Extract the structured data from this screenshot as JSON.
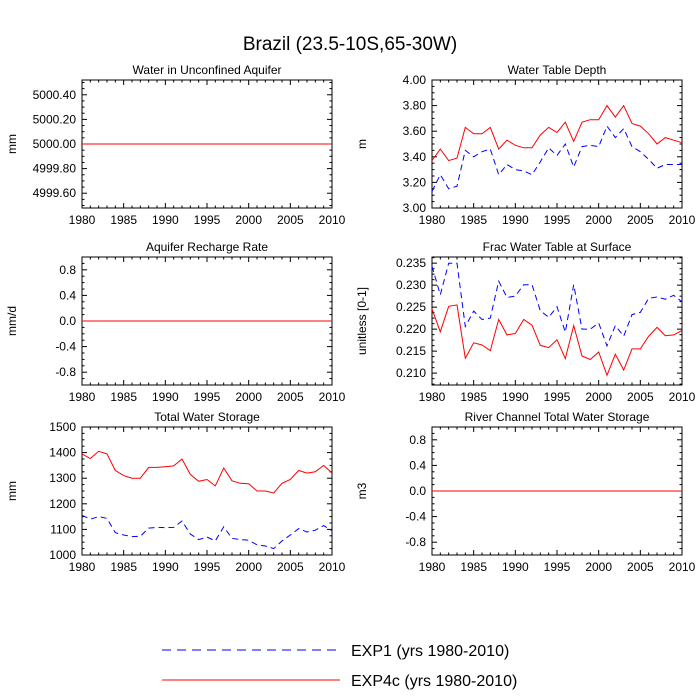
{
  "title": "Brazil (23.5-10S,65-30W)",
  "legend": [
    {
      "name": "EXP1 (yrs 1980-2010)",
      "color": "#0000ff",
      "dash": "dashed"
    },
    {
      "name": "EXP4c (yrs 1980-2010)",
      "color": "#ff0000",
      "dash": "solid"
    }
  ],
  "chart_data": [
    {
      "type": "line",
      "title": "Water in Unconfined Aquifer",
      "xlabel": "",
      "ylabel": "mm",
      "xlim": [
        1980,
        2010
      ],
      "ylim": [
        4999.48,
        5000.52
      ],
      "xticks": [
        1980,
        1985,
        1990,
        1995,
        2000,
        2005,
        2010
      ],
      "yticks": [
        4999.6,
        4999.8,
        5000.0,
        5000.2,
        5000.4
      ],
      "ytick_labels": [
        "4999.60",
        "4999.80",
        "5000.00",
        "5000.20",
        "5000.40"
      ],
      "x": [
        1980,
        2010
      ],
      "series": [
        {
          "name": "EXP1 (yrs 1980-2010)",
          "values": [
            5000.0,
            5000.0
          ]
        },
        {
          "name": "EXP4c (yrs 1980-2010)",
          "values": [
            5000.0,
            5000.0
          ]
        }
      ]
    },
    {
      "type": "line",
      "title": "Water Table Depth",
      "xlabel": "",
      "ylabel": "m",
      "xlim": [
        1980,
        2010
      ],
      "ylim": [
        3.0,
        4.0
      ],
      "xticks": [
        1980,
        1985,
        1990,
        1995,
        2000,
        2005,
        2010
      ],
      "yticks": [
        3.0,
        3.2,
        3.4,
        3.6,
        3.8,
        4.0
      ],
      "ytick_labels": [
        "3.00",
        "3.20",
        "3.40",
        "3.60",
        "3.80",
        "4.00"
      ],
      "x": [
        1980,
        1981,
        1982,
        1983,
        1984,
        1985,
        1986,
        1987,
        1988,
        1989,
        1990,
        1991,
        1992,
        1993,
        1994,
        1995,
        1996,
        1997,
        1998,
        1999,
        2000,
        2001,
        2002,
        2003,
        2004,
        2005,
        2006,
        2007,
        2008,
        2009,
        2010
      ],
      "series": [
        {
          "name": "EXP1 (yrs 1980-2010)",
          "values": [
            3.13,
            3.26,
            3.15,
            3.17,
            3.45,
            3.4,
            3.44,
            3.46,
            3.26,
            3.34,
            3.3,
            3.29,
            3.26,
            3.36,
            3.47,
            3.41,
            3.5,
            3.32,
            3.48,
            3.49,
            3.48,
            3.64,
            3.55,
            3.62,
            3.48,
            3.44,
            3.38,
            3.31,
            3.34,
            3.34,
            3.34
          ]
        },
        {
          "name": "EXP4c (yrs 1980-2010)",
          "values": [
            3.37,
            3.46,
            3.37,
            3.39,
            3.63,
            3.58,
            3.58,
            3.63,
            3.46,
            3.53,
            3.49,
            3.47,
            3.47,
            3.57,
            3.63,
            3.59,
            3.67,
            3.52,
            3.67,
            3.69,
            3.69,
            3.8,
            3.71,
            3.8,
            3.66,
            3.64,
            3.58,
            3.5,
            3.55,
            3.53,
            3.51
          ]
        }
      ]
    },
    {
      "type": "line",
      "title": "Aquifer Recharge Rate",
      "xlabel": "",
      "ylabel": "mm/d",
      "xlim": [
        1980,
        2010
      ],
      "ylim": [
        -1.0,
        1.0
      ],
      "xticks": [
        1980,
        1985,
        1990,
        1995,
        2000,
        2005,
        2010
      ],
      "yticks": [
        -0.8,
        -0.4,
        0.0,
        0.4,
        0.8
      ],
      "ytick_labels": [
        "-0.8",
        "-0.4",
        "0.0",
        "0.4",
        "0.8"
      ],
      "x": [
        1980,
        2010
      ],
      "series": [
        {
          "name": "EXP1 (yrs 1980-2010)",
          "values": [
            0.0,
            0.0
          ]
        },
        {
          "name": "EXP4c (yrs 1980-2010)",
          "values": [
            0.0,
            0.0
          ]
        }
      ]
    },
    {
      "type": "line",
      "title": "Frac Water Table at Surface",
      "xlabel": "",
      "ylabel": "unitless [0-1]",
      "xlim": [
        1980,
        2010
      ],
      "ylim": [
        0.2073,
        0.2364
      ],
      "xticks": [
        1980,
        1985,
        1990,
        1995,
        2000,
        2005,
        2010
      ],
      "yticks": [
        0.21,
        0.215,
        0.22,
        0.225,
        0.23,
        0.235
      ],
      "ytick_labels": [
        "0.210",
        "0.215",
        "0.220",
        "0.225",
        "0.230",
        "0.235"
      ],
      "x": [
        1980,
        1981,
        1982,
        1983,
        1984,
        1985,
        1986,
        1987,
        1988,
        1989,
        1990,
        1991,
        1992,
        1993,
        1994,
        1995,
        1996,
        1997,
        1998,
        1999,
        2000,
        2001,
        2002,
        2003,
        2004,
        2005,
        2006,
        2007,
        2008,
        2009,
        2010
      ],
      "series": [
        {
          "name": "EXP1 (yrs 1980-2010)",
          "values": [
            0.2343,
            0.2278,
            0.235,
            0.235,
            0.2206,
            0.2241,
            0.2222,
            0.2225,
            0.2309,
            0.2272,
            0.2275,
            0.2301,
            0.2301,
            0.2242,
            0.2227,
            0.2251,
            0.2193,
            0.2301,
            0.22,
            0.22,
            0.2214,
            0.2162,
            0.2208,
            0.2184,
            0.2233,
            0.2238,
            0.227,
            0.2273,
            0.2268,
            0.2277,
            0.2262
          ]
        },
        {
          "name": "EXP4c (yrs 1980-2010)",
          "values": [
            0.2246,
            0.2194,
            0.2252,
            0.2255,
            0.2134,
            0.2169,
            0.2164,
            0.2151,
            0.2222,
            0.2187,
            0.219,
            0.2222,
            0.2209,
            0.2163,
            0.2158,
            0.2176,
            0.2133,
            0.2208,
            0.2139,
            0.2131,
            0.2148,
            0.2095,
            0.2143,
            0.2107,
            0.2155,
            0.2155,
            0.2184,
            0.2204,
            0.2185,
            0.2187,
            0.2197
          ]
        }
      ]
    },
    {
      "type": "line",
      "title": "Total Water Storage",
      "xlabel": "",
      "ylabel": "mm",
      "xlim": [
        1980,
        2010
      ],
      "ylim": [
        1000,
        1500
      ],
      "xticks": [
        1980,
        1985,
        1990,
        1995,
        2000,
        2005,
        2010
      ],
      "yticks": [
        1000,
        1100,
        1200,
        1300,
        1400,
        1500
      ],
      "ytick_labels": [
        "1000",
        "1100",
        "1200",
        "1300",
        "1400",
        "1500"
      ],
      "x": [
        1980,
        1981,
        1982,
        1983,
        1984,
        1985,
        1986,
        1987,
        1988,
        1989,
        1990,
        1991,
        1992,
        1993,
        1994,
        1995,
        1996,
        1997,
        1998,
        1999,
        2000,
        2001,
        2002,
        2003,
        2004,
        2005,
        2006,
        2007,
        2008,
        2009,
        2010
      ],
      "series": [
        {
          "name": "EXP1 (yrs 1980-2010)",
          "values": [
            1155,
            1140,
            1150,
            1143,
            1087,
            1078,
            1072,
            1073,
            1105,
            1108,
            1107,
            1108,
            1133,
            1082,
            1060,
            1070,
            1055,
            1110,
            1065,
            1060,
            1058,
            1040,
            1035,
            1025,
            1055,
            1078,
            1103,
            1090,
            1097,
            1115,
            1095
          ]
        },
        {
          "name": "EXP4c (yrs 1980-2010)",
          "values": [
            1395,
            1377,
            1405,
            1395,
            1330,
            1310,
            1300,
            1300,
            1342,
            1342,
            1345,
            1348,
            1375,
            1315,
            1288,
            1295,
            1270,
            1340,
            1290,
            1280,
            1278,
            1250,
            1250,
            1242,
            1280,
            1295,
            1330,
            1320,
            1325,
            1350,
            1320
          ]
        }
      ]
    },
    {
      "type": "line",
      "title": "River Channel Total Water Storage",
      "xlabel": "",
      "ylabel": "m3",
      "xlim": [
        1980,
        2010
      ],
      "ylim": [
        -1.0,
        1.0
      ],
      "xticks": [
        1980,
        1985,
        1990,
        1995,
        2000,
        2005,
        2010
      ],
      "yticks": [
        -0.8,
        -0.4,
        0.0,
        0.4,
        0.8
      ],
      "ytick_labels": [
        "-0.8",
        "-0.4",
        "0.0",
        "0.4",
        "0.8"
      ],
      "x": [
        1980,
        2010
      ],
      "series": [
        {
          "name": "EXP1 (yrs 1980-2010)",
          "values": [
            0.0,
            0.0
          ]
        },
        {
          "name": "EXP4c (yrs 1980-2010)",
          "values": [
            0.0,
            0.0
          ]
        }
      ]
    }
  ]
}
